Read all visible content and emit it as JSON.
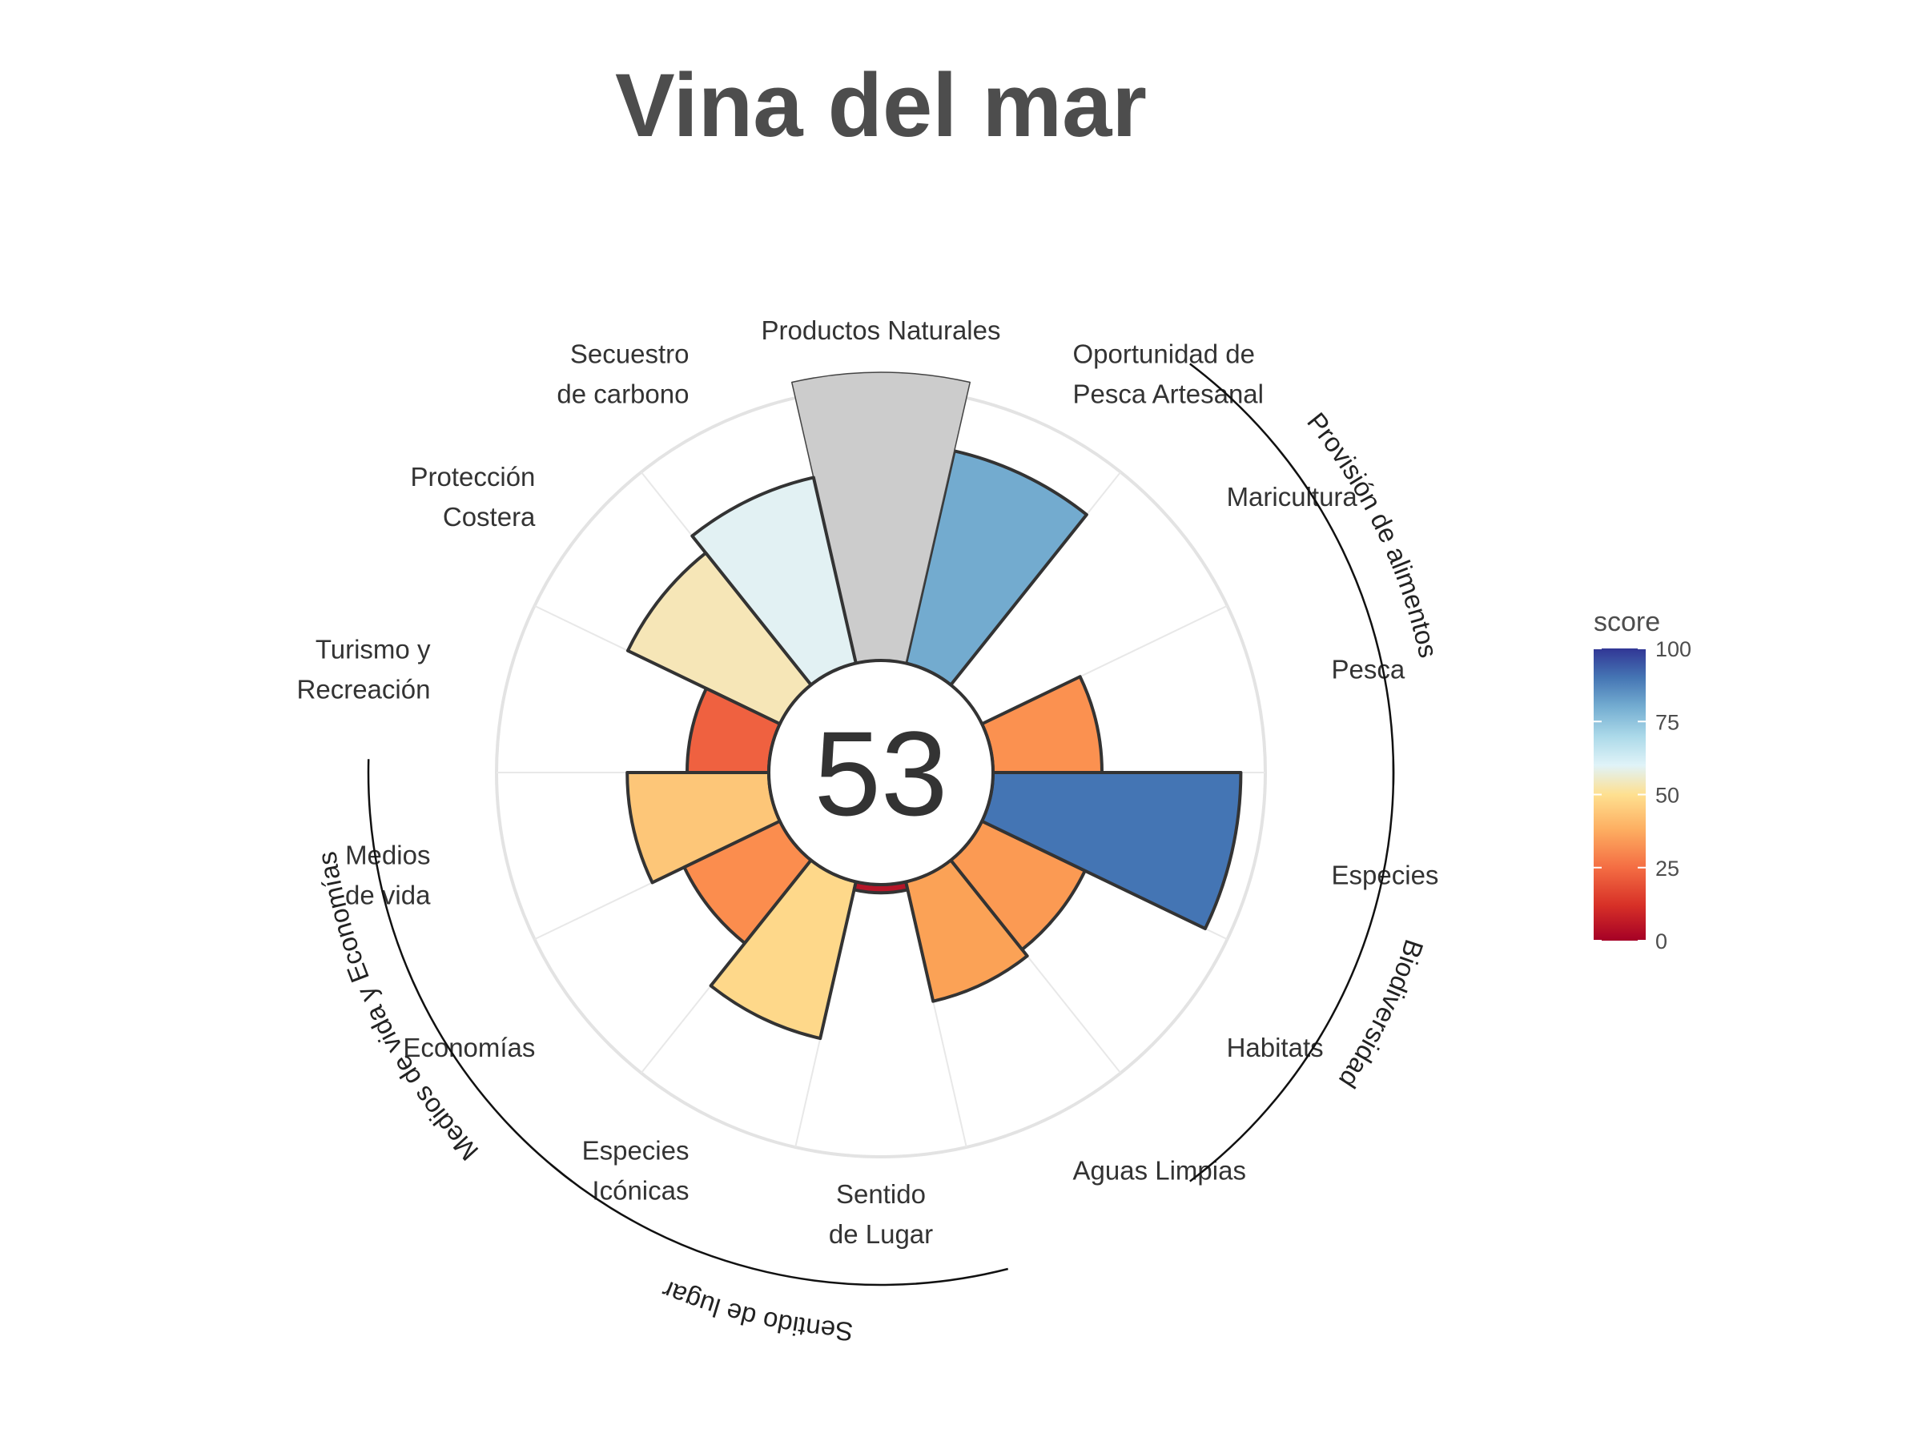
{
  "chart_data": {
    "type": "polar-bar",
    "title": "Vina del mar",
    "center_score": "53",
    "scale": [
      0,
      100
    ],
    "goals": [
      {
        "name": "Pesca",
        "label": [
          "Pesca"
        ],
        "value": 40,
        "color": "#fb9150"
      },
      {
        "name": "Maricultura",
        "label": [
          "Maricultura"
        ],
        "value": 0,
        "color": "#ffffff"
      },
      {
        "name": "Oportunidad de Pesca Artesanal",
        "label": [
          "Oportunidad de",
          "Pesca Artesanal"
        ],
        "value": 80,
        "color": "#73abcf"
      },
      {
        "name": "Productos Naturales",
        "label": [
          "Productos Naturales"
        ],
        "value": null,
        "color": "#cccccc"
      },
      {
        "name": "Secuestro de carbono",
        "label": [
          "Secuestro",
          "de carbono"
        ],
        "value": 70,
        "color": "#e2f1f3"
      },
      {
        "name": "Protección Costera",
        "label": [
          "Protección",
          "Costera"
        ],
        "value": 62,
        "color": "#f6e6b7"
      },
      {
        "name": "Turismo y Recreación",
        "label": [
          "Turismo y",
          "Recreación"
        ],
        "value": 30,
        "color": "#ef6140"
      },
      {
        "name": "Medios de vida",
        "label": [
          "Medios",
          "de vida"
        ],
        "value": 52,
        "color": "#fdc678"
      },
      {
        "name": "Economías",
        "label": [
          "Economías"
        ],
        "value": 39,
        "color": "#fb8d4e"
      },
      {
        "name": "Especies Icónicas",
        "label": [
          "Especies",
          "Icónicas"
        ],
        "value": 59,
        "color": "#fed88a"
      },
      {
        "name": "Sentido de Lugar",
        "label": [
          "Sentido",
          "de Lugar"
        ],
        "value": 3,
        "color": "#b51628"
      },
      {
        "name": "Aguas Limpias",
        "label": [
          "Aguas Limpias"
        ],
        "value": 45,
        "color": "#fba256"
      },
      {
        "name": "Habitats",
        "label": [
          "Habitats"
        ],
        "value": 42,
        "color": "#fb9a53"
      },
      {
        "name": "Especies",
        "label": [
          "Especies"
        ],
        "value": 91,
        "color": "#4475b4"
      }
    ],
    "groups": [
      {
        "name": "Provisión de alimentos",
        "goals": [
          "Pesca",
          "Maricultura"
        ]
      },
      {
        "name": "Biodiversidad",
        "goals": [
          "Especies",
          "Habitats"
        ]
      },
      {
        "name": "Sentido de lugar",
        "goals": [
          "Especies Icónicas",
          "Sentido de Lugar"
        ]
      },
      {
        "name": "Medios de vida y Economías",
        "goals": [
          "Medios de vida",
          "Economías"
        ]
      }
    ],
    "legend": {
      "title": "score",
      "ticks": [
        "0",
        "25",
        "50",
        "75",
        "100"
      ],
      "colors": [
        "#a50026",
        "#d73027",
        "#f46d43",
        "#fdae61",
        "#fee090",
        "#e0f3f8",
        "#abd9e9",
        "#74add1",
        "#4575b4",
        "#313695"
      ],
      "placement": "right"
    }
  }
}
